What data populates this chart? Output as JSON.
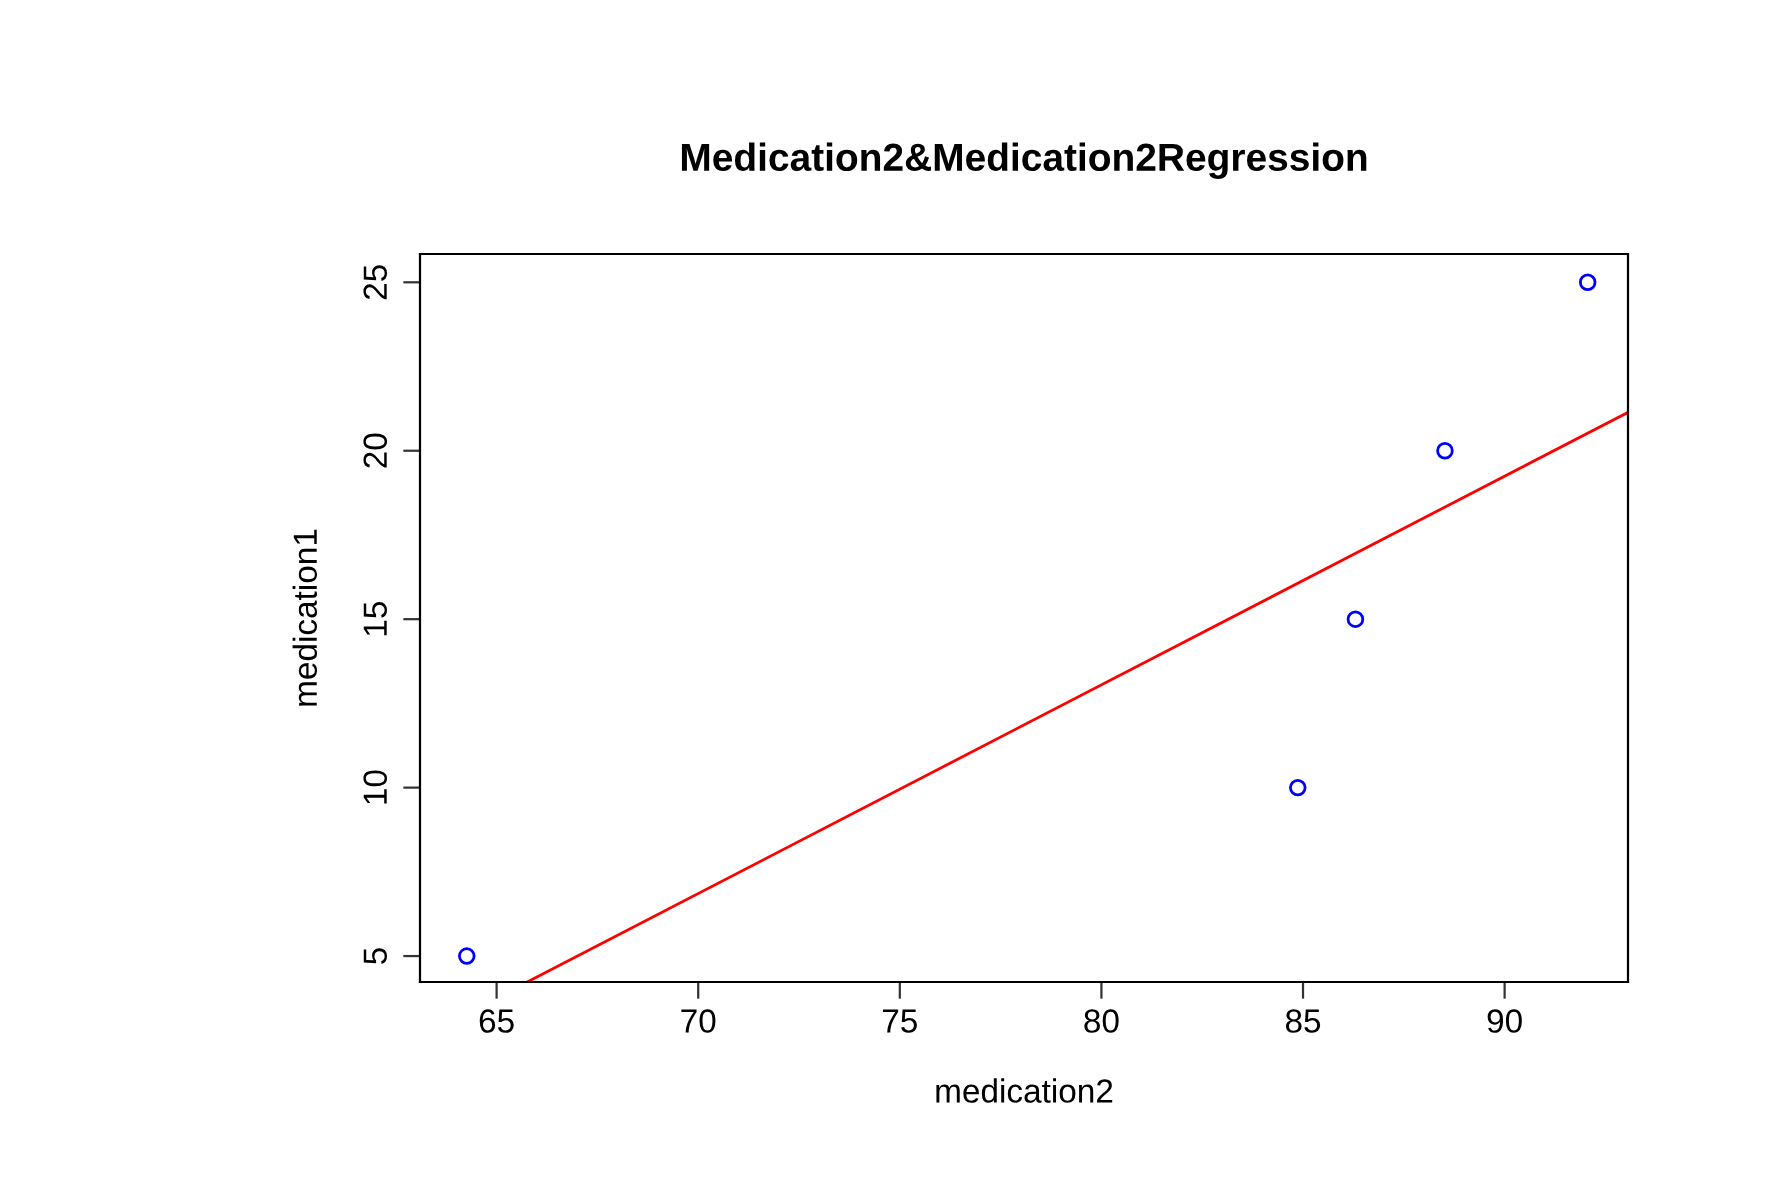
{
  "chart_data": {
    "type": "scatter",
    "title": "Medication2&Medication2Regression",
    "xlabel": "medication2",
    "ylabel": "medication1",
    "series": [
      {
        "color": "#0000ff",
        "x": [
          64.26,
          84.87,
          86.3,
          88.52,
          92.06
        ],
        "values": [
          5,
          10,
          15,
          20,
          25
        ],
        "marker": "circle"
      },
      {
        "type": "line",
        "color": "#ff0000",
        "x": [
          65.76,
          93.06
        ],
        "values": [
          4.23,
          21.14
        ],
        "marker": "none"
      }
    ],
    "xlim": [
      63.1,
      93.06
    ],
    "ylim": [
      4.23,
      25.84
    ],
    "xticks": [
      65,
      70,
      75,
      80,
      85,
      90
    ],
    "yticks": [
      5,
      10,
      15,
      20,
      25
    ],
    "grid": false,
    "legend": false
  }
}
